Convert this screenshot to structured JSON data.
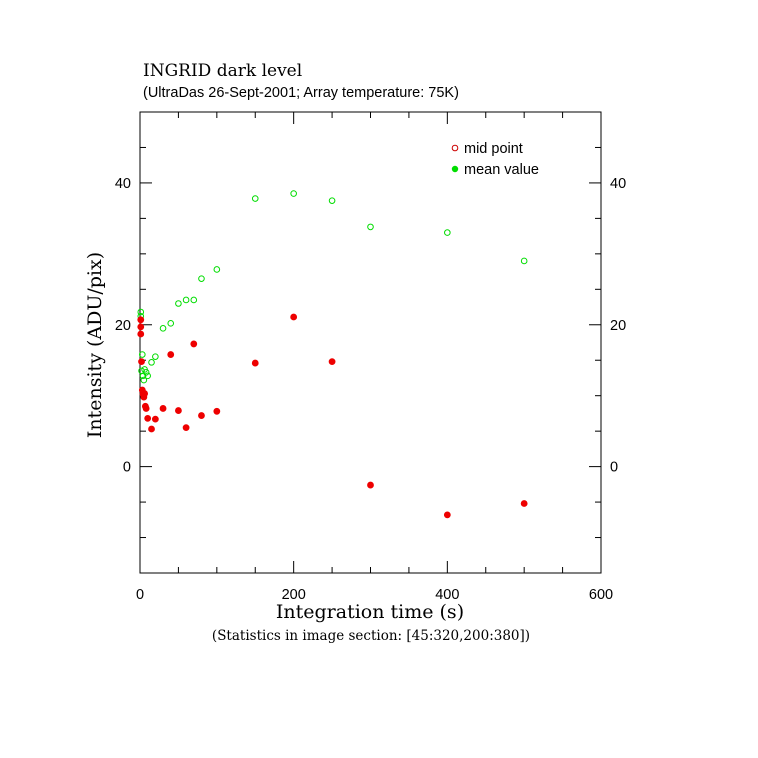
{
  "chart_data": {
    "type": "scatter",
    "title": "INGRID dark level",
    "subtitle": "(UltraDas 26-Sept-2001; Array temperature: 75K)",
    "xlabel": "Integration time (s)",
    "ylabel": "Intensity (ADU/pix)",
    "footnote": "(Statistics in image section: [45:320,200:380])",
    "xlim": [
      0,
      600
    ],
    "ylim": [
      -15,
      50
    ],
    "x_ticks": [
      0,
      200,
      400,
      600
    ],
    "y_ticks": [
      0,
      20,
      40
    ],
    "x_ticklabels": [
      "0",
      "200",
      "400",
      "600"
    ],
    "y_ticklabels": [
      "0",
      "20",
      "40"
    ],
    "y_ticklabels_right": [
      "0",
      "20",
      "40"
    ],
    "legend_position": "top-right",
    "grid": false,
    "series": [
      {
        "name": "mid point",
        "marker": "open-circle",
        "color": "#00dd00",
        "points": [
          {
            "x": 1,
            "y": 21.8
          },
          {
            "x": 1,
            "y": 21.2
          },
          {
            "x": 2,
            "y": 13.5
          },
          {
            "x": 3,
            "y": 15.8
          },
          {
            "x": 4,
            "y": 12.8
          },
          {
            "x": 5,
            "y": 12.2
          },
          {
            "x": 6,
            "y": 13.7
          },
          {
            "x": 8,
            "y": 13.3
          },
          {
            "x": 10,
            "y": 12.8
          },
          {
            "x": 15,
            "y": 14.7
          },
          {
            "x": 20,
            "y": 15.5
          },
          {
            "x": 30,
            "y": 19.5
          },
          {
            "x": 40,
            "y": 20.2
          },
          {
            "x": 50,
            "y": 23.0
          },
          {
            "x": 60,
            "y": 23.5
          },
          {
            "x": 70,
            "y": 23.5
          },
          {
            "x": 80,
            "y": 26.5
          },
          {
            "x": 100,
            "y": 27.8
          },
          {
            "x": 150,
            "y": 37.8
          },
          {
            "x": 200,
            "y": 38.5
          },
          {
            "x": 250,
            "y": 37.5
          },
          {
            "x": 300,
            "y": 33.8
          },
          {
            "x": 400,
            "y": 33.0
          },
          {
            "x": 500,
            "y": 29.0
          }
        ]
      },
      {
        "name": "mean value",
        "marker": "filled-circle",
        "color": "#ee0000",
        "points": [
          {
            "x": 1,
            "y": 20.7
          },
          {
            "x": 1,
            "y": 19.7
          },
          {
            "x": 1,
            "y": 18.7
          },
          {
            "x": 2,
            "y": 14.8
          },
          {
            "x": 3,
            "y": 10.8
          },
          {
            "x": 4,
            "y": 10.2
          },
          {
            "x": 5,
            "y": 9.8
          },
          {
            "x": 6,
            "y": 10.3
          },
          {
            "x": 7,
            "y": 8.5
          },
          {
            "x": 8,
            "y": 8.2
          },
          {
            "x": 10,
            "y": 6.8
          },
          {
            "x": 15,
            "y": 5.3
          },
          {
            "x": 20,
            "y": 6.7
          },
          {
            "x": 30,
            "y": 8.2
          },
          {
            "x": 40,
            "y": 15.8
          },
          {
            "x": 50,
            "y": 7.9
          },
          {
            "x": 60,
            "y": 5.5
          },
          {
            "x": 70,
            "y": 17.3
          },
          {
            "x": 80,
            "y": 7.2
          },
          {
            "x": 100,
            "y": 7.8
          },
          {
            "x": 150,
            "y": 14.6
          },
          {
            "x": 200,
            "y": 21.1
          },
          {
            "x": 250,
            "y": 14.8
          },
          {
            "x": 300,
            "y": -2.6
          },
          {
            "x": 400,
            "y": -6.8
          },
          {
            "x": 500,
            "y": -5.2
          }
        ]
      }
    ]
  }
}
